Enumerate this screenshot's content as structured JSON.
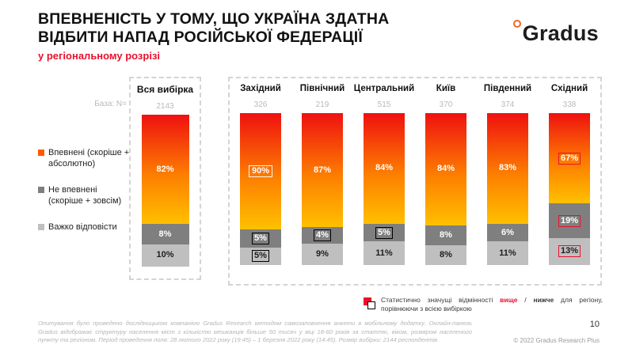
{
  "header": {
    "title_line1": "ВПЕВНЕНІСТЬ У ТОМУ, ЩО УКРАЇНА ЗДАТНА",
    "title_line2": "ВІДБИТИ НАПАД РОСІЙСЬКОЇ ФЕДЕРАЦІЇ",
    "subtitle": "у регіональному розрізі",
    "logo_text": "Gradus"
  },
  "colors": {
    "confident_top": "#ef1010",
    "confident_mid": "#fd7e00",
    "confident_bottom": "#ffc000",
    "not_confident": "#7f7f7f",
    "hard": "#bfbfbf",
    "accent": "#e8112d",
    "legend_confident": "#ff5a00"
  },
  "chart_data": {
    "type": "bar",
    "stacked": true,
    "orientation": "vertical",
    "value_suffix": "%",
    "base_label": "База: N=",
    "categories": [
      "Вся вибірка",
      "Західний",
      "Північний",
      "Центральний",
      "Київ",
      "Південний",
      "Східний"
    ],
    "bases": [
      "2143",
      "326",
      "219",
      "515",
      "370",
      "374",
      "338"
    ],
    "series": [
      {
        "name": "Впевнені (скоріше + абсолютно)",
        "values": [
          82,
          90,
          87,
          84,
          84,
          83,
          67
        ]
      },
      {
        "name": "Не впевнені (скоріше + зовсім)",
        "values": [
          8,
          5,
          4,
          5,
          8,
          6,
          19
        ]
      },
      {
        "name": "Важко відповісти",
        "values": [
          10,
          5,
          9,
          11,
          8,
          11,
          13
        ]
      }
    ],
    "significance_boxes": [
      [
        null,
        null,
        null
      ],
      [
        "white",
        "black",
        "black"
      ],
      [
        null,
        "black",
        null
      ],
      [
        null,
        "black",
        null
      ],
      [
        null,
        null,
        null
      ],
      [
        null,
        null,
        null
      ],
      [
        "red",
        "red",
        "red"
      ]
    ],
    "legend_position": "left",
    "grid": false
  },
  "significance_note": {
    "part1": "Статистично значущі відмінності ",
    "higher": "вище",
    "separator": " / ",
    "lower": "нижче",
    "part2": " для регіону, порівнюючи з всією вибіркою"
  },
  "footer": {
    "line1": "Опитування було проведено дослідницькою компанією Gradus Research методом самозаповнення анкети в мобільному додатку. Онлайн-панель",
    "line2": "Gradus відображає структуру населення міст з кількістю мешканців більше 50 тисяч у віці 18-60 років за статтю, віком, розміром населеного",
    "line3": "пункту та регіоном. Період проведення поля: 28 лютого 2022 року (19:45) – 1 березня 2022 року (14:45). Розмір вибірки: 2144 респондентів"
  },
  "page_number": "10",
  "copyright": "© 2022 Gradus Research Plus"
}
